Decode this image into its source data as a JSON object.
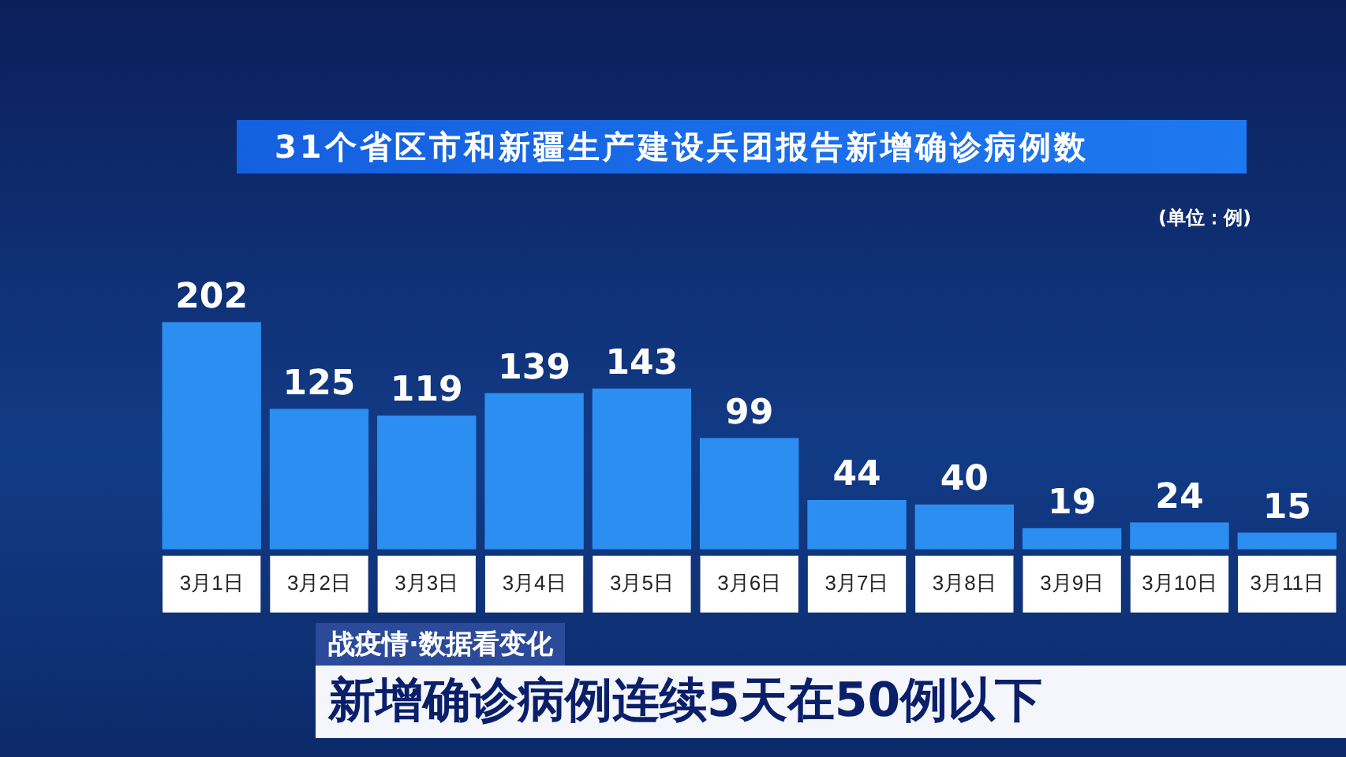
{
  "chart_data": {
    "type": "bar",
    "title": "31个省区市和新疆生产建设兵团报告新增确诊病例数",
    "ylabel": "(单位：例)",
    "categories": [
      "3月1日",
      "3月2日",
      "3月3日",
      "3月4日",
      "3月5日",
      "3月6日",
      "3月7日",
      "3月8日",
      "3月9日",
      "3月10日",
      "3月11日"
    ],
    "values": [
      202,
      125,
      119,
      139,
      143,
      99,
      44,
      40,
      19,
      24,
      15
    ],
    "color": "#2b8ef0",
    "data_labels": true,
    "grid": false,
    "legend": false,
    "annotations": [
      "战疫情·数据看变化",
      "新增确诊病例连续5天在50例以下"
    ]
  }
}
